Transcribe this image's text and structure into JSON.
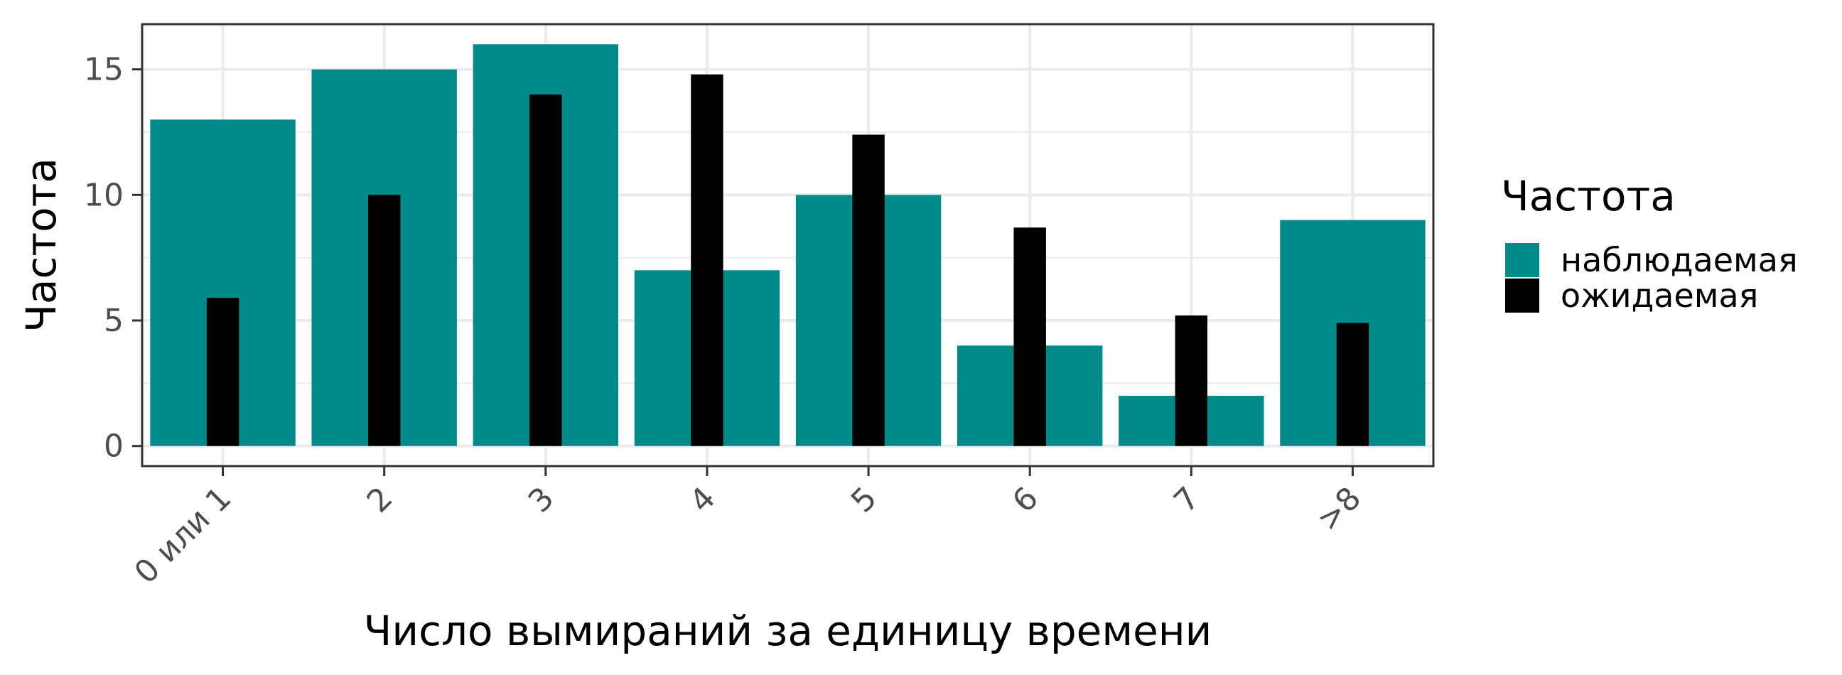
{
  "chart_data": {
    "type": "bar",
    "categories": [
      "0 или 1",
      "2",
      "3",
      "4",
      "5",
      "6",
      "7",
      ">8"
    ],
    "series": [
      {
        "name": "наблюдаемая",
        "color": "#008B8B",
        "values": [
          13,
          15,
          16,
          7,
          10,
          4,
          2,
          9
        ]
      },
      {
        "name": "ожидаемая",
        "color": "#000000",
        "values": [
          5.9,
          10,
          14,
          14.8,
          12.4,
          8.7,
          5.2,
          4.9
        ]
      }
    ],
    "xlabel": "Число вымираний за единицу времени",
    "ylabel": "Частота",
    "ylim": [
      -0.8,
      16.8
    ],
    "yticks": [
      0,
      5,
      10,
      15
    ],
    "grid": true,
    "legend": {
      "title": "Частота",
      "position": "right"
    }
  }
}
